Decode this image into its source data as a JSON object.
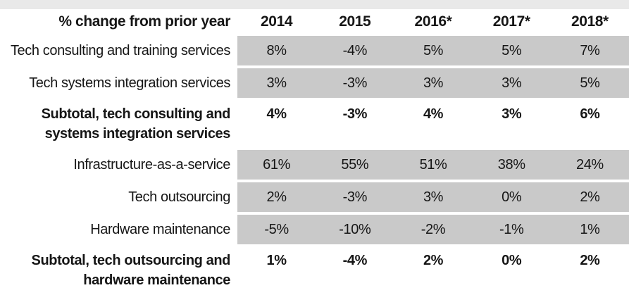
{
  "table": {
    "header": {
      "label": "% change from prior year",
      "years": [
        "2014",
        "2015",
        "2016*",
        "2017*",
        "2018*"
      ]
    },
    "rows": [
      {
        "type": "data",
        "label": "Tech consulting and training services",
        "values": [
          "8%",
          "-4%",
          "5%",
          "5%",
          "7%"
        ]
      },
      {
        "type": "data",
        "label": "Tech systems integration services",
        "values": [
          "3%",
          "-3%",
          "3%",
          "3%",
          "5%"
        ]
      },
      {
        "type": "subtotal",
        "label": "Subtotal, tech consulting and systems integration services",
        "label_lines": [
          "Subtotal, tech consulting and",
          "systems integration services"
        ],
        "values": [
          "4%",
          "-3%",
          "4%",
          "3%",
          "6%"
        ]
      },
      {
        "type": "data",
        "label": "Infrastructure-as-a-service",
        "values": [
          "61%",
          "55%",
          "51%",
          "38%",
          "24%"
        ]
      },
      {
        "type": "data",
        "label": "Tech outsourcing",
        "values": [
          "2%",
          "-3%",
          "3%",
          "0%",
          "2%"
        ]
      },
      {
        "type": "data",
        "label": "Hardware maintenance",
        "values": [
          "-5%",
          "-10%",
          "-2%",
          "-1%",
          "1%"
        ]
      },
      {
        "type": "subtotal",
        "label": "Subtotal, tech outsourcing and hardware maintenance",
        "label_lines": [
          "Subtotal, tech outsourcing and",
          "hardware maintenance"
        ],
        "values": [
          "1%",
          "-4%",
          "2%",
          "0%",
          "2%"
        ]
      }
    ],
    "colors": {
      "cell_gray": "#c9c9c9",
      "top_strip": "#e9e9e9",
      "text": "#161616"
    }
  },
  "chart_data": {
    "type": "table",
    "title": "% change from prior year",
    "columns": [
      "% change from prior year",
      "2014",
      "2015",
      "2016*",
      "2017*",
      "2018*"
    ],
    "rows": [
      [
        "Tech consulting and training services",
        "8%",
        "-4%",
        "5%",
        "5%",
        "7%"
      ],
      [
        "Tech systems integration services",
        "3%",
        "-3%",
        "3%",
        "3%",
        "5%"
      ],
      [
        "Subtotal, tech consulting and systems integration services",
        "4%",
        "-3%",
        "4%",
        "3%",
        "6%"
      ],
      [
        "Infrastructure-as-a-service",
        "61%",
        "55%",
        "51%",
        "38%",
        "24%"
      ],
      [
        "Tech outsourcing",
        "2%",
        "-3%",
        "3%",
        "0%",
        "2%"
      ],
      [
        "Hardware maintenance",
        "-5%",
        "-10%",
        "-2%",
        "-1%",
        "1%"
      ],
      [
        "Subtotal, tech outsourcing and hardware maintenance",
        "1%",
        "-4%",
        "2%",
        "0%",
        "2%"
      ]
    ],
    "layout_hints": {
      "value_cell_background": "#c9c9c9",
      "subtotal_rows_bold_on_white": [
        2,
        6
      ],
      "label_column_right_aligned": true
    }
  }
}
